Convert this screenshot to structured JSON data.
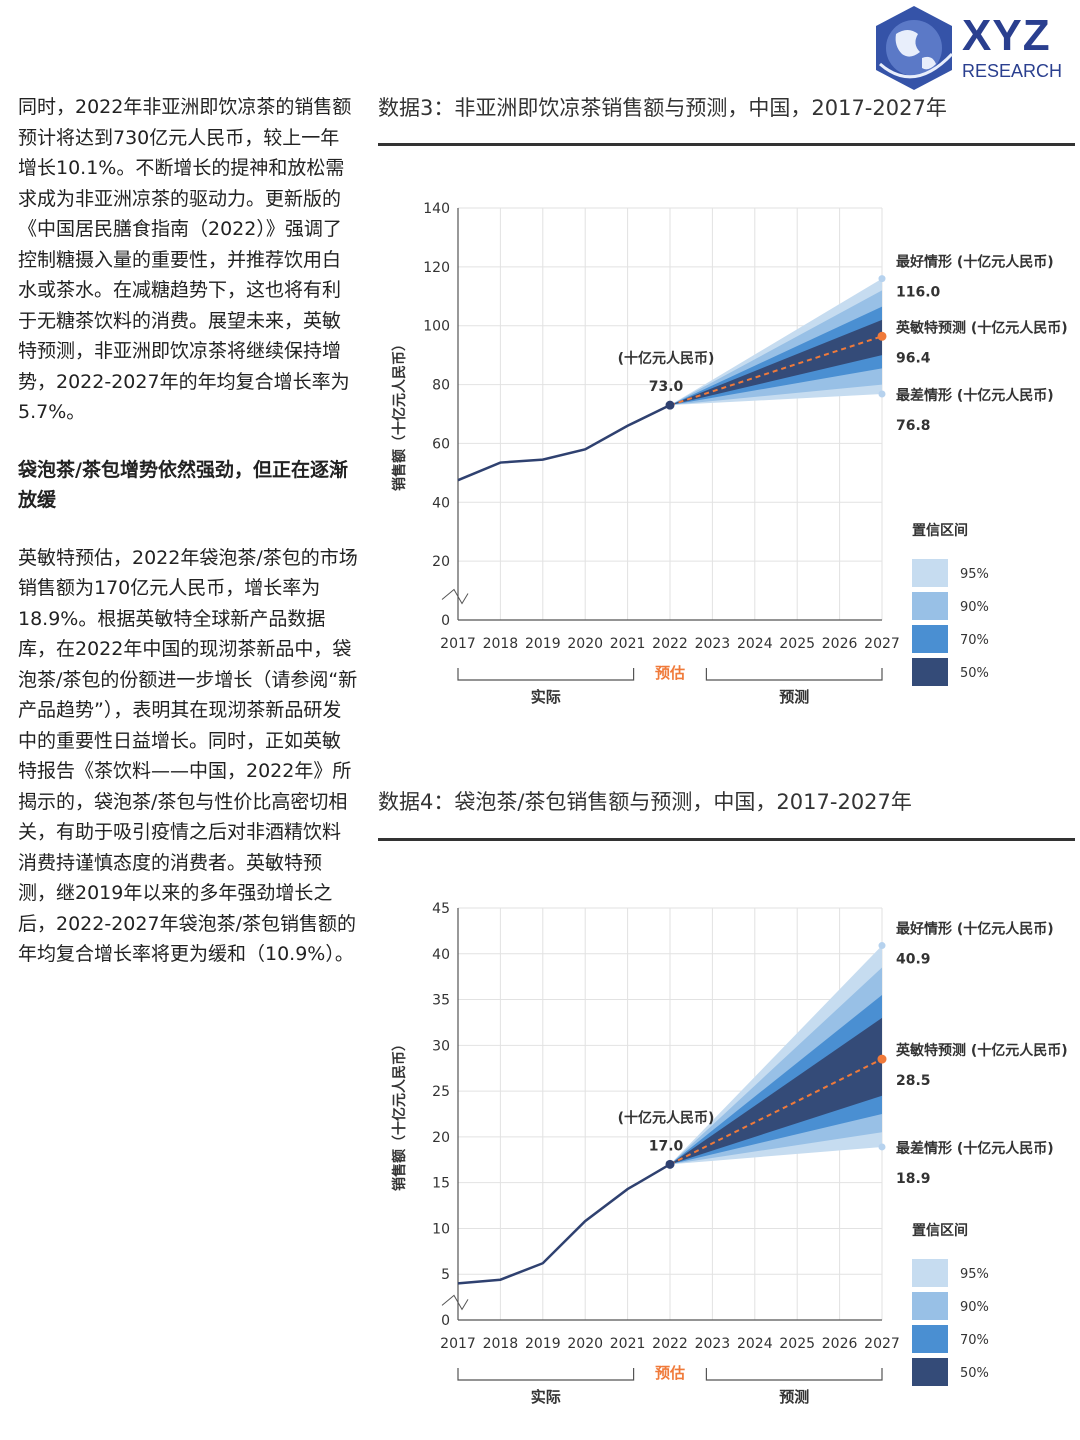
{
  "logo": {
    "title": "XYZ",
    "subtitle": "RESEARCH",
    "color": "#2a3f8f"
  },
  "left_column": {
    "para1": "同时，2022年非亚洲即饮凉茶的销售额预计将达到730亿元人民币，较上一年增长10.1%。不断增长的提神和放松需求成为非亚洲凉茶的驱动力。更新版的《中国居民膳食指南（2022）》强调了控制糖摄入量的重要性，并推荐饮用白水或茶水。在减糖趋势下，这也将有利于无糖茶饮料的消费。展望未来，英敏特预测，非亚洲即饮凉茶将继续保持增势，2022-2027年的年均复合增长率为5.7%。",
    "heading": "袋泡茶/茶包增势依然强劲，但正在逐渐放缓",
    "para2": "英敏特预估，2022年袋泡茶/茶包的市场销售额为170亿元人民币，增长率为18.9%。根据英敏特全球新产品数据库，在2022年中国的现沏茶新品中，袋泡茶/茶包的份额进一步增长（请参阅“新产品趋势”），表明其在现沏茶新品研发中的重要性日益增长。同时，正如英敏特报告《茶饮料——中国，2022年》所揭示的，袋泡茶/茶包与性价比高密切相关，有助于吸引疫情之后对非酒精饮料消费持谨慎态度的消费者。英敏特预测，继2019年以来的多年强劲增长之后，2022-2027年袋泡茶/茶包销售额的年均复合增长率将更为缓和（10.9%）。"
  },
  "chart_data": [
    {
      "type": "line",
      "title": "数据3：非亚洲即饮凉茶销售额与预测，中国，2017-2027年",
      "ylabel": "销售额（十亿元人民币）",
      "ylim": [
        0,
        140
      ],
      "yticks": [
        0,
        20,
        40,
        60,
        80,
        100,
        120,
        140
      ],
      "x": [
        2017,
        2018,
        2019,
        2020,
        2021,
        2022,
        2023,
        2024,
        2025,
        2026,
        2027
      ],
      "actual": {
        "x": [
          2017,
          2018,
          2019,
          2020,
          2021,
          2022
        ],
        "values": [
          47.5,
          53.5,
          54.5,
          58,
          66,
          73.0
        ]
      },
      "forecast": {
        "start": 2022,
        "end": 2027,
        "start_value": 73.0,
        "end_value": 96.4
      },
      "fan_end": {
        "p95": [
          76.8,
          116.0
        ],
        "p90": [
          80,
          112
        ],
        "p70": [
          85.5,
          106.5
        ],
        "p50": [
          90,
          102
        ]
      },
      "start_label_unit": "(十亿元人民币)",
      "start_label_value": "73.0",
      "best_label": "最好情形 (十亿元人民币)",
      "best_value": "116.0",
      "mid_label": "英敏特预测 (十亿元人民币)",
      "mid_value": "96.4",
      "worst_label": "最差情形 (十亿元人民币)",
      "worst_value": "76.8",
      "estimate_label": "预估",
      "actual_label": "实际",
      "forecast_label": "预测",
      "ci_title": "置信区间",
      "ci_items": [
        {
          "label": "95%",
          "color": "#c6dcf0"
        },
        {
          "label": "90%",
          "color": "#98c0e6"
        },
        {
          "label": "70%",
          "color": "#4a8fd2"
        },
        {
          "label": "50%",
          "color": "#344b78"
        }
      ],
      "line_color": "#2f4170",
      "forecast_color": "#f07a3a",
      "estimate_color": "#f07a3a"
    },
    {
      "type": "line",
      "title": "数据4：袋泡茶/茶包销售额与预测，中国，2017-2027年",
      "ylabel": "销售额（十亿元人民币）",
      "ylim": [
        0,
        45
      ],
      "yticks": [
        0,
        5,
        10,
        15,
        20,
        25,
        30,
        35,
        40,
        45
      ],
      "x": [
        2017,
        2018,
        2019,
        2020,
        2021,
        2022,
        2023,
        2024,
        2025,
        2026,
        2027
      ],
      "actual": {
        "x": [
          2017,
          2018,
          2019,
          2020,
          2021,
          2022
        ],
        "values": [
          4.0,
          4.4,
          6.2,
          10.8,
          14.3,
          17.0
        ]
      },
      "forecast": {
        "start": 2022,
        "end": 2027,
        "start_value": 17.0,
        "end_value": 28.5
      },
      "fan_end": {
        "p95": [
          18.9,
          40.9
        ],
        "p90": [
          20.5,
          38.5
        ],
        "p70": [
          22.5,
          35.5
        ],
        "p50": [
          24.5,
          33.0
        ]
      },
      "start_label_unit": "(十亿元人民币)",
      "start_label_value": "17.0",
      "best_label": "最好情形 (十亿元人民币)",
      "best_value": "40.9",
      "mid_label": "英敏特预测 (十亿元人民币)",
      "mid_value": "28.5",
      "worst_label": "最差情形 (十亿元人民币)",
      "worst_value": "18.9",
      "estimate_label": "预估",
      "actual_label": "实际",
      "forecast_label": "预测",
      "ci_title": "置信区间",
      "ci_items": [
        {
          "label": "95%",
          "color": "#c6dcf0"
        },
        {
          "label": "90%",
          "color": "#98c0e6"
        },
        {
          "label": "70%",
          "color": "#4a8fd2"
        },
        {
          "label": "50%",
          "color": "#344b78"
        }
      ],
      "line_color": "#2f4170",
      "forecast_color": "#f07a3a",
      "estimate_color": "#f07a3a"
    }
  ]
}
